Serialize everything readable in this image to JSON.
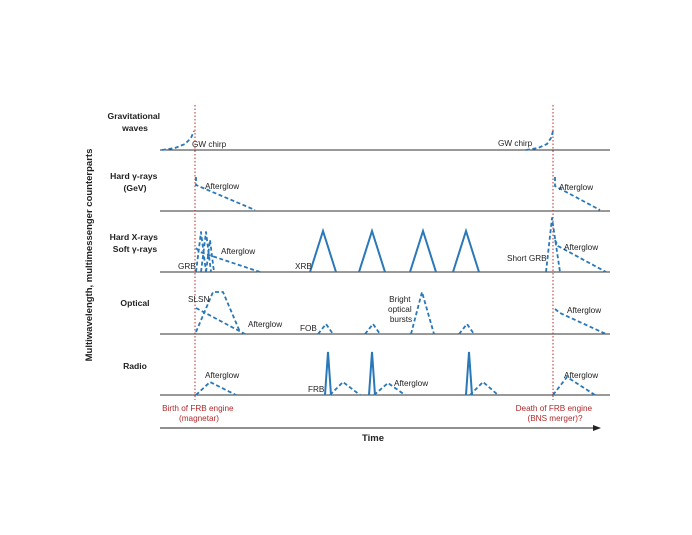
{
  "y_axis_label": "Multiwavelength, multimessenger counterparts",
  "x_axis_label": "Time",
  "bands": [
    {
      "id": "gw",
      "label_lines": [
        "Gravitational",
        "waves"
      ]
    },
    {
      "id": "gamma",
      "label_lines": [
        "Hard γ-rays",
        "(GeV)"
      ]
    },
    {
      "id": "xray",
      "label_lines": [
        "Hard X-rays",
        "Soft γ-rays"
      ]
    },
    {
      "id": "optical",
      "label_lines": [
        "Optical"
      ]
    },
    {
      "id": "radio",
      "label_lines": [
        "Radio"
      ]
    }
  ],
  "annotations": {
    "gw_chirp_left": "GW chirp",
    "gw_chirp_right": "GW chirp",
    "afterglow_gamma_left": "Afterglow",
    "afterglow_gamma_right": "Afterglow",
    "grb": "GRB",
    "afterglow_xray_left": "Afterglow",
    "xrb": "XRB",
    "short_grb": "Short GRB",
    "afterglow_xray_right": "Afterglow",
    "slsn": "SLSN",
    "afterglow_optical_left": "Afterglow",
    "fob": "FOB",
    "bright_optical_bursts": [
      "Bright",
      "optical",
      "bursts"
    ],
    "afterglow_optical_right": "Afterglow",
    "afterglow_radio_left": "Afterglow",
    "frb": "FRB",
    "afterglow_radio_mid": "Afterglow",
    "afterglow_radio_right": "Afterglow"
  },
  "events": {
    "birth": [
      "Birth of FRB engine",
      "(magnetar)"
    ],
    "death": [
      "Death of FRB engine",
      "(BNS merger)?"
    ]
  },
  "colors": {
    "signal": "#2a78b8",
    "event_line": "#c0282a",
    "event_text": "#b0282a",
    "baseline": "#333333",
    "text": "#222222"
  }
}
